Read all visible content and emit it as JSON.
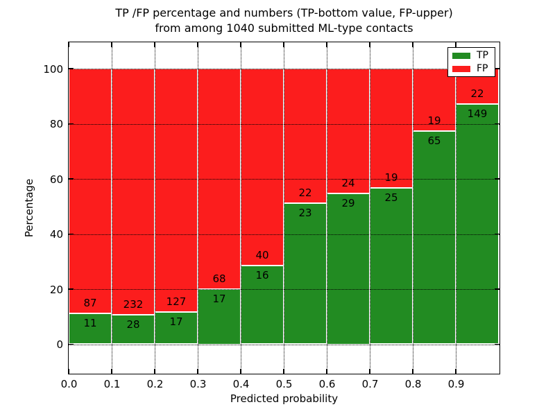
{
  "figure": {
    "title_line1": "TP /FP percentage and numbers (TP-bottom value, FP-upper)",
    "title_line2": "from among 1040 submitted ML-type contacts",
    "xlabel": "Predicted probability",
    "ylabel": "Percentage"
  },
  "legend": {
    "position": "upper right",
    "items": [
      {
        "label": "TP",
        "color": "#228b22"
      },
      {
        "label": "FP",
        "color": "#fc1d1d"
      }
    ]
  },
  "colors": {
    "tp_green": "#228b22",
    "fp_red": "#fc1d1d",
    "bar_edge": "#ffffff",
    "grid": "#000000",
    "text": "#000000",
    "background": "#ffffff"
  },
  "chart_data": {
    "type": "bar",
    "variant": "stacked-100percent-histogram",
    "title": "TP /FP percentage and numbers (TP-bottom value, FP-upper)\nfrom among 1040 submitted ML-type contacts",
    "xlabel": "Predicted probability",
    "ylabel": "Percentage",
    "total_contacts": 1040,
    "bin_edges": [
      0.0,
      0.1,
      0.2,
      0.3,
      0.4,
      0.5,
      0.6,
      0.7,
      0.8,
      0.9,
      1.0
    ],
    "series": [
      {
        "name": "TP",
        "color": "#228b22",
        "stack_position": "bottom",
        "counts": [
          11,
          28,
          17,
          17,
          16,
          23,
          29,
          25,
          65,
          149
        ],
        "percent_of_bin": [
          11.2,
          10.8,
          11.8,
          20.0,
          28.6,
          51.1,
          54.7,
          56.8,
          77.4,
          87.1
        ]
      },
      {
        "name": "FP",
        "color": "#fc1d1d",
        "stack_position": "top",
        "counts": [
          87,
          232,
          127,
          68,
          40,
          22,
          24,
          19,
          19,
          22
        ],
        "percent_of_bin": [
          88.8,
          89.2,
          88.2,
          80.0,
          71.4,
          48.9,
          45.3,
          43.2,
          22.6,
          12.9
        ]
      }
    ],
    "bar_total_pct": 100,
    "annotation_rule": "FP count printed just above TP/FP boundary, TP count just below",
    "xticks": [
      {
        "value": 0.0,
        "label": "0.0"
      },
      {
        "value": 0.1,
        "label": "0.1"
      },
      {
        "value": 0.2,
        "label": "0.2"
      },
      {
        "value": 0.3,
        "label": "0.3"
      },
      {
        "value": 0.4,
        "label": "0.4"
      },
      {
        "value": 0.5,
        "label": "0.5"
      },
      {
        "value": 0.6,
        "label": "0.6"
      },
      {
        "value": 0.7,
        "label": "0.7"
      },
      {
        "value": 0.8,
        "label": "0.8"
      },
      {
        "value": 0.9,
        "label": "0.9"
      }
    ],
    "yticks": [
      {
        "value": 0,
        "label": "0"
      },
      {
        "value": 20,
        "label": "20"
      },
      {
        "value": 40,
        "label": "40"
      },
      {
        "value": 60,
        "label": "60"
      },
      {
        "value": 80,
        "label": "80"
      },
      {
        "value": 100,
        "label": "100"
      }
    ],
    "xlim": [
      0.0,
      1.0
    ],
    "ylim": [
      -10.4,
      109.6
    ],
    "grid": {
      "show": true,
      "linestyle": "dotted",
      "color": "#000000",
      "drawn_over_bars": true
    },
    "bar_edge_color": "#ffffff",
    "legend_position": "upper right",
    "legend_labels": [
      "TP",
      "FP"
    ]
  }
}
